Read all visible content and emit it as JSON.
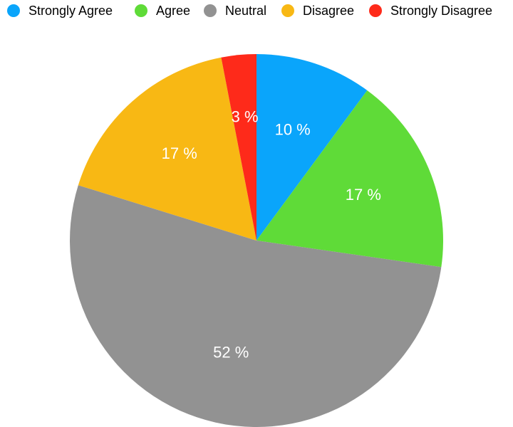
{
  "chart_data": {
    "type": "pie",
    "legend_position": "top",
    "slices": [
      {
        "name": "Strongly Agree",
        "value": 10,
        "label": "10 %",
        "color": "#0aa5fb"
      },
      {
        "name": "Agree",
        "value": 17,
        "label": "17 %",
        "color": "#5fdb38"
      },
      {
        "name": "Neutral",
        "value": 52,
        "label": "52 %",
        "color": "#929292"
      },
      {
        "name": "Disagree",
        "value": 17,
        "label": "17 %",
        "color": "#f8b814"
      },
      {
        "name": "Strongly Disagree",
        "value": 3,
        "label": "3 %",
        "color": "#fe2a1a"
      }
    ]
  }
}
